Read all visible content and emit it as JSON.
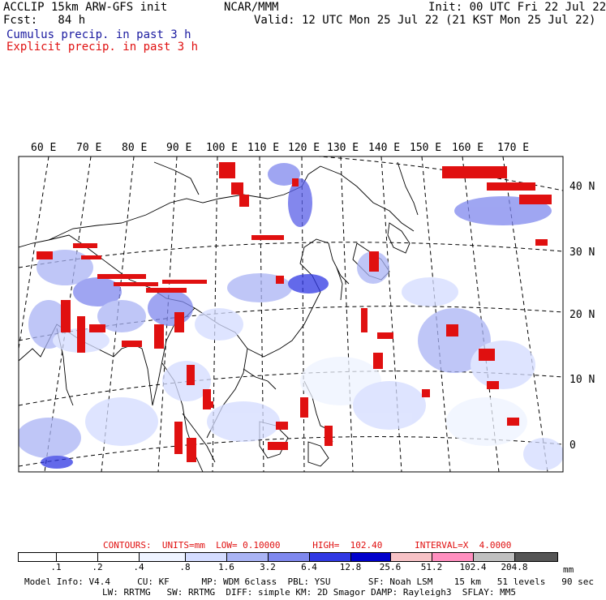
{
  "header": {
    "line1_left": "ACCLIP 15km ARW-GFS init",
    "line1_center": "NCAR/MMM",
    "line1_right": "Init: 00 UTC Fri 22 Jul 22",
    "line2_left": "Fcst:   84 h",
    "line2_right": "Valid: 12 UTC Mon 25 Jul 22 (21 KST Mon 25 Jul 22)",
    "legend_cumulus": "Cumulus precip. in past 3 h",
    "legend_explicit": "Explicit precip. in past 3 h",
    "colors": {
      "cumulus": "#1a1aa0",
      "explicit": "#e01010"
    }
  },
  "map": {
    "lon_labels": [
      "60 E",
      "70 E",
      "80 E",
      "90 E",
      "100 E",
      "110 E",
      "120 E",
      "130 E",
      "140 E",
      "150 E",
      "160 E",
      "170 E"
    ],
    "lat_labels": [
      "40 N",
      "30 N",
      "20 N",
      "10 N",
      "0"
    ]
  },
  "contours": {
    "text": "CONTOURS:  UNITS=mm  LOW= 0.10000      HIGH=  102.40      INTERVAL=X  4.0000"
  },
  "colorbar": {
    "ticks": [
      ".1",
      ".2",
      ".4",
      ".8",
      "1.6",
      "3.2",
      "6.4",
      "12.8",
      "25.6",
      "51.2",
      "102.4",
      "204.8"
    ],
    "unit": "mm",
    "colors": [
      "#ffffff",
      "#ffffff",
      "#ffffff",
      "#eef3ff",
      "#d4dcff",
      "#aab4f5",
      "#7f88ee",
      "#3038e4",
      "#0000cc",
      "#f7c2c6",
      "#ff8fbf",
      "#c0c0c0",
      "#555555",
      "#d6a8f8"
    ]
  },
  "footer": {
    "line1": "Model Info: V4.4     CU: KF      MP: WDM 6class  PBL: YSU       SF: Noah LSM    15 km   51 levels   90 sec",
    "line2": "LW: RRTMG   SW: RRTMG  DIFF: simple KM: 2D Smagor DAMP: Rayleigh3  SFLAY: MM5"
  }
}
